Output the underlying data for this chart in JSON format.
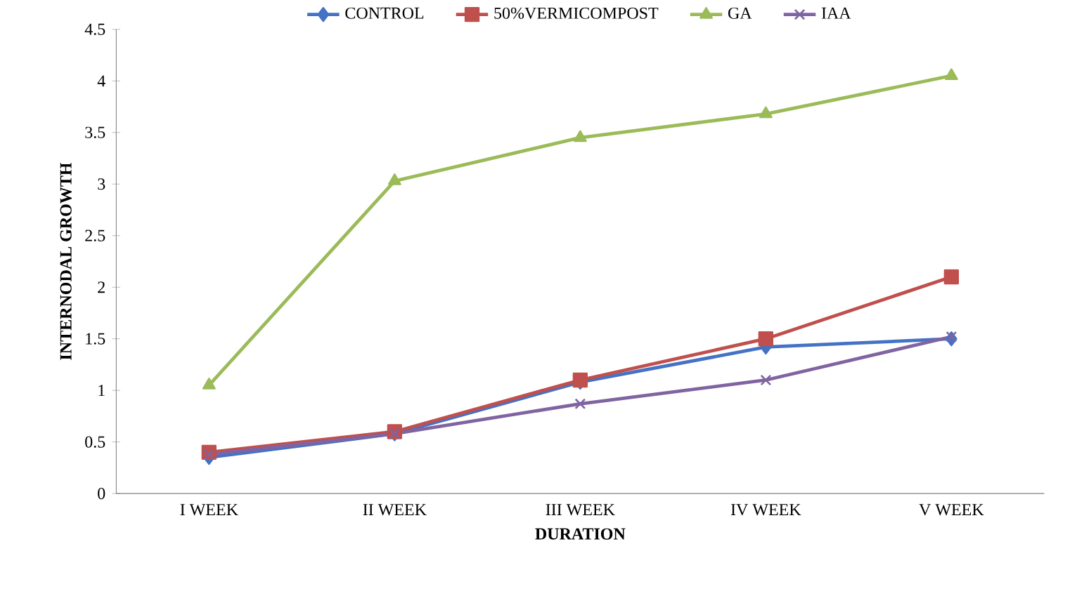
{
  "chart_data": {
    "type": "line",
    "xlabel": "DURATION",
    "ylabel": "INTERNODAL GROWTH",
    "categories": [
      "I WEEK",
      "II WEEK",
      "III WEEK",
      "IV WEEK",
      "V WEEK"
    ],
    "ylim": [
      0,
      4.5
    ],
    "yticks": [
      0,
      0.5,
      1,
      1.5,
      2,
      2.5,
      3,
      3.5,
      4,
      4.5
    ],
    "legend": "top",
    "grid": false,
    "series": [
      {
        "name": "CONTROL",
        "color": "#4472c4",
        "marker": "diamond",
        "values": [
          0.35,
          0.58,
          1.08,
          1.42,
          1.5
        ]
      },
      {
        "name": "50%VERMICOMPOST",
        "color": "#c0504d",
        "marker": "square",
        "values": [
          0.4,
          0.6,
          1.1,
          1.5,
          2.1
        ]
      },
      {
        "name": "GA",
        "color": "#9bbb59",
        "marker": "triangle",
        "values": [
          1.05,
          3.03,
          3.45,
          3.68,
          4.05
        ]
      },
      {
        "name": "IAA",
        "color": "#8064a2",
        "marker": "cross",
        "values": [
          0.38,
          0.58,
          0.87,
          1.1,
          1.52
        ]
      }
    ]
  }
}
